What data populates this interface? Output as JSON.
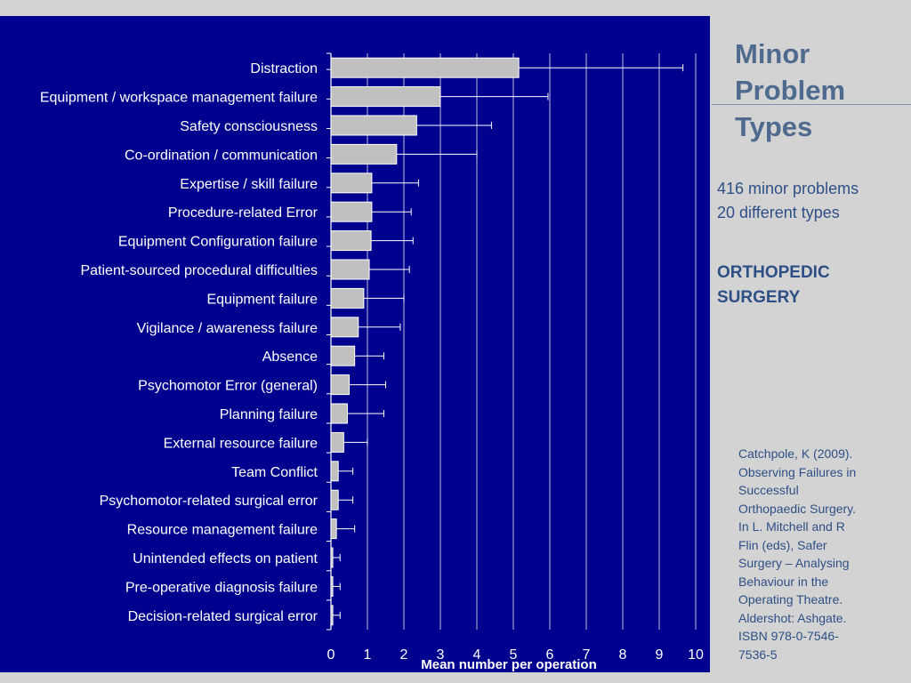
{
  "slide": {
    "title_lines": [
      "Minor",
      "Problem",
      "Types"
    ],
    "stat_lines": [
      "416 minor problems",
      "20 different types"
    ],
    "surgery_lines": [
      "ORTHOPEDIC",
      "SURGERY"
    ],
    "citation_lines": [
      "Catchpole, K (2009).",
      "Observing Failures in",
      "Successful",
      "Orthopaedic Surgery.",
      "In L. Mitchell and R",
      "Flin (eds), Safer",
      "Surgery – Analysing",
      "Behaviour in the",
      "Operating Theatre.",
      "Aldershot: Ashgate.",
      "ISBN 978-0-7546-",
      "7536-5"
    ]
  },
  "colors": {
    "panel_background": "#00008e",
    "bar_fill": "#c0c0c0",
    "grid": "#ffffff",
    "slide_background": "#d3d3d3",
    "title_text": "#4f6a8f",
    "body_text": "#2e4f86"
  },
  "chart_data": {
    "type": "bar",
    "orientation": "horizontal",
    "title": "",
    "xlabel": "Mean number per operation",
    "ylabel": "",
    "xlim": [
      0,
      10
    ],
    "xticks": [
      0,
      1,
      2,
      3,
      4,
      5,
      6,
      7,
      8,
      9,
      10
    ],
    "grid": true,
    "error_bars": true,
    "categories": [
      "Distraction",
      "Equipment / workspace management failure",
      "Safety consciousness",
      "Co-ordination / communication",
      "Expertise / skill failure",
      "Procedure-related Error",
      "Equipment Configuration failure",
      "Patient-sourced procedural difficulties",
      "Equipment failure",
      "Vigilance / awareness failure",
      "Absence",
      "Psychomotor Error (general)",
      "Planning failure",
      "External resource failure",
      "Team Conflict",
      "Psychomotor-related surgical error",
      "Resource management failure",
      "Unintended effects on patient",
      "Pre-operative diagnosis failure",
      "Decision-related surgical error"
    ],
    "values": [
      5.15,
      3.0,
      2.35,
      1.8,
      1.12,
      1.12,
      1.1,
      1.05,
      0.9,
      0.75,
      0.65,
      0.5,
      0.45,
      0.35,
      0.2,
      0.2,
      0.15,
      0.05,
      0.05,
      0.05
    ],
    "error_upper": [
      9.65,
      5.95,
      4.4,
      4.0,
      2.4,
      2.2,
      2.25,
      2.15,
      2.0,
      1.9,
      1.45,
      1.5,
      1.45,
      1.0,
      0.6,
      0.6,
      0.65,
      0.25,
      0.25,
      0.25
    ]
  }
}
